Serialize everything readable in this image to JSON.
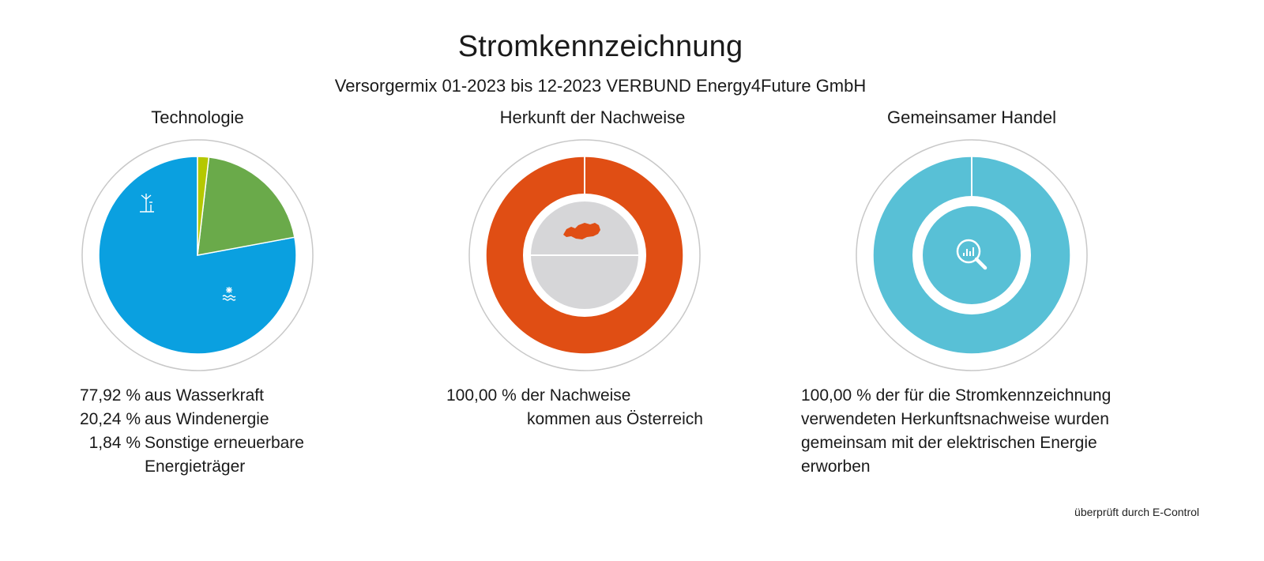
{
  "title": "Stromkennzeichnung",
  "subtitle": "Versorgermix 01-2023 bis 12-2023 VERBUND Energy4Future GmbH",
  "panels": {
    "technologie": {
      "title": "Technologie"
    },
    "herkunft": {
      "title": "Herkunft der Nachweise"
    },
    "handel": {
      "title": "Gemeinsamer Handel"
    }
  },
  "legend_technologie": [
    {
      "pct": "77,92 %",
      "label": "aus Wasserkraft"
    },
    {
      "pct": "20,24 %",
      "label": "aus Windenergie"
    },
    {
      "pct": "1,84 %",
      "label": "Sonstige erneuerbare"
    },
    {
      "pct": "",
      "label": "Energieträger"
    }
  ],
  "legend_herkunft": {
    "line1": "100,00 % der Nachweise",
    "line2": "kommen aus Österreich"
  },
  "legend_handel": {
    "line1": "100,00 % der für die Stromkennzeichnung",
    "line2": "verwendeten Herkunftsnachweise wurden",
    "line3": "gemeinsam mit der elektrischen Energie",
    "line4": "erworben"
  },
  "footnote": "überprüft durch E-Control",
  "chart_data": [
    {
      "type": "pie",
      "title": "Technologie",
      "categories": [
        "aus Wasserkraft",
        "aus Windenergie",
        "Sonstige erneuerbare Energieträger"
      ],
      "values": [
        77.92,
        20.24,
        1.84
      ],
      "colors": [
        "#0aa0e0",
        "#6aaa4a",
        "#b5c800"
      ],
      "icons": [
        "hydro-icon",
        "wind-turbine-icon",
        ""
      ]
    },
    {
      "type": "pie",
      "title": "Herkunft der Nachweise",
      "categories": [
        "Österreich"
      ],
      "values": [
        100.0
      ],
      "colors": [
        "#e04e14"
      ],
      "icons": [
        "austria-map-icon"
      ]
    },
    {
      "type": "pie",
      "title": "Gemeinsamer Handel",
      "categories": [
        "gemeinsam mit der elektrischen Energie erworben"
      ],
      "values": [
        100.0
      ],
      "colors": [
        "#58c0d6"
      ],
      "icons": [
        "magnifier-chart-icon"
      ]
    }
  ]
}
